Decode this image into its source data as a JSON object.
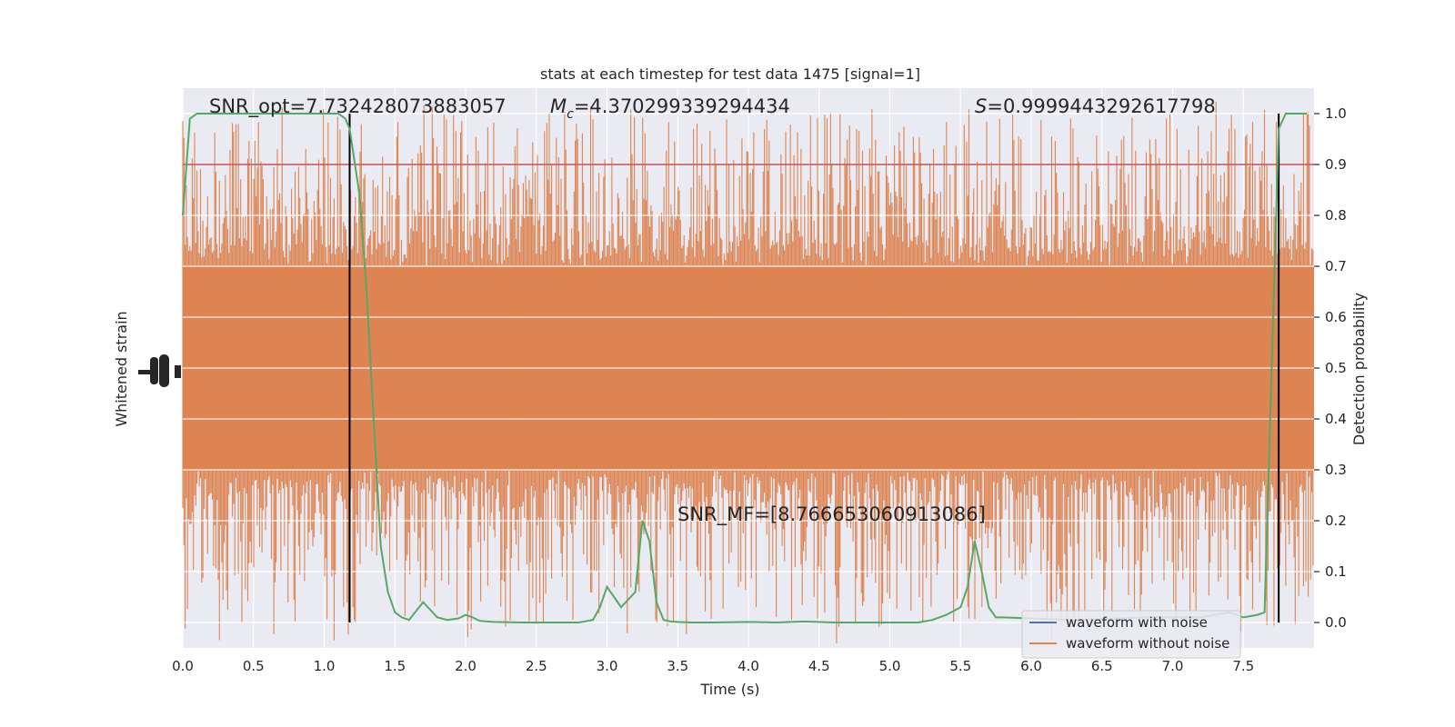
{
  "chart_data": {
    "type": "line",
    "title": "stats at each timestep for test data 1475 [signal=1]",
    "xlabel": "Time (s)",
    "ylabel_left": "Whitened strain",
    "ylabel_right": "Detection probability",
    "xlim": [
      0.0,
      8.0
    ],
    "ylim_right": [
      -0.05,
      1.05
    ],
    "x_ticks": [
      "0.0",
      "0.5",
      "1.0",
      "1.5",
      "2.0",
      "2.5",
      "3.0",
      "3.5",
      "4.0",
      "4.5",
      "5.0",
      "5.5",
      "6.0",
      "6.5",
      "7.0",
      "7.5"
    ],
    "x_tick_values": [
      0.0,
      0.5,
      1.0,
      1.5,
      2.0,
      2.5,
      3.0,
      3.5,
      4.0,
      4.5,
      5.0,
      5.5,
      6.0,
      6.5,
      7.0,
      7.5
    ],
    "y_right_ticks": [
      "0.0",
      "0.1",
      "0.2",
      "0.3",
      "0.4",
      "0.5",
      "0.6",
      "0.7",
      "0.8",
      "0.9",
      "1.0"
    ],
    "y_right_tick_values": [
      0.0,
      0.1,
      0.2,
      0.3,
      0.4,
      0.5,
      0.6,
      0.7,
      0.8,
      0.9,
      1.0
    ],
    "annotations": {
      "snr_opt": "SNR_opt=7.732428073883057",
      "mc_symbol": "M",
      "mc_sub": "c",
      "mc_value": "=4.370299339294434",
      "s_symbol": "S",
      "s_value": "=0.9999443292617798",
      "snr_mf": "SNR_MF=[8.766653060913086]"
    },
    "threshold": {
      "value": 0.9,
      "color": "#c44e52"
    },
    "vertical_lines": [
      1.18,
      7.75
    ],
    "legend": {
      "position": "lower-right",
      "entries": [
        {
          "label": "waveform with noise",
          "color": "#4c72b0"
        },
        {
          "label": "waveform without noise",
          "color": "#dd8452"
        }
      ]
    },
    "series": [
      {
        "name": "detection probability",
        "color": "#55a868",
        "x": [
          0.0,
          0.05,
          0.1,
          0.15,
          0.2,
          0.3,
          0.4,
          0.5,
          0.6,
          0.7,
          0.8,
          0.9,
          1.0,
          1.1,
          1.15,
          1.18,
          1.25,
          1.3,
          1.35,
          1.4,
          1.45,
          1.5,
          1.55,
          1.6,
          1.7,
          1.8,
          1.87,
          1.95,
          2.0,
          2.05,
          2.1,
          2.2,
          2.4,
          2.6,
          2.8,
          2.9,
          2.95,
          3.0,
          3.05,
          3.1,
          3.2,
          3.25,
          3.3,
          3.35,
          3.4,
          3.45,
          3.5,
          3.6,
          3.75,
          4.0,
          4.2,
          4.3,
          4.4,
          4.6,
          4.8,
          5.0,
          5.2,
          5.3,
          5.4,
          5.5,
          5.55,
          5.6,
          5.65,
          5.7,
          5.75,
          5.8,
          6.0,
          6.3,
          6.8,
          7.2,
          7.4,
          7.5,
          7.6,
          7.65,
          7.7,
          7.75,
          7.8,
          7.85,
          7.9,
          7.95
        ],
        "y": [
          0.8,
          0.99,
          1.0,
          1.0,
          1.0,
          1.0,
          1.0,
          1.0,
          1.0,
          1.0,
          1.0,
          1.0,
          1.0,
          1.0,
          0.99,
          0.97,
          0.84,
          0.65,
          0.4,
          0.15,
          0.06,
          0.02,
          0.01,
          0.005,
          0.04,
          0.01,
          0.005,
          0.008,
          0.015,
          0.01,
          0.003,
          0.001,
          0.0,
          0.0,
          0.0,
          0.005,
          0.03,
          0.07,
          0.05,
          0.03,
          0.06,
          0.2,
          0.16,
          0.04,
          0.005,
          0.002,
          0.001,
          0.0,
          0.0,
          0.001,
          0.0,
          0.001,
          0.002,
          0.0,
          0.0,
          0.0,
          0.0,
          0.005,
          0.015,
          0.03,
          0.07,
          0.16,
          0.1,
          0.03,
          0.01,
          0.01,
          0.008,
          0.005,
          0.01,
          0.01,
          0.02,
          0.01,
          0.015,
          0.02,
          0.5,
          0.97,
          1.0,
          1.0,
          1.0,
          1.0
        ]
      },
      {
        "name": "waveform without noise",
        "color": "#dd8452",
        "style": "dense noise band",
        "band_right_units": [
          0.3,
          0.7
        ],
        "spike_range_right_units": [
          0.0,
          0.98
        ]
      }
    ]
  }
}
